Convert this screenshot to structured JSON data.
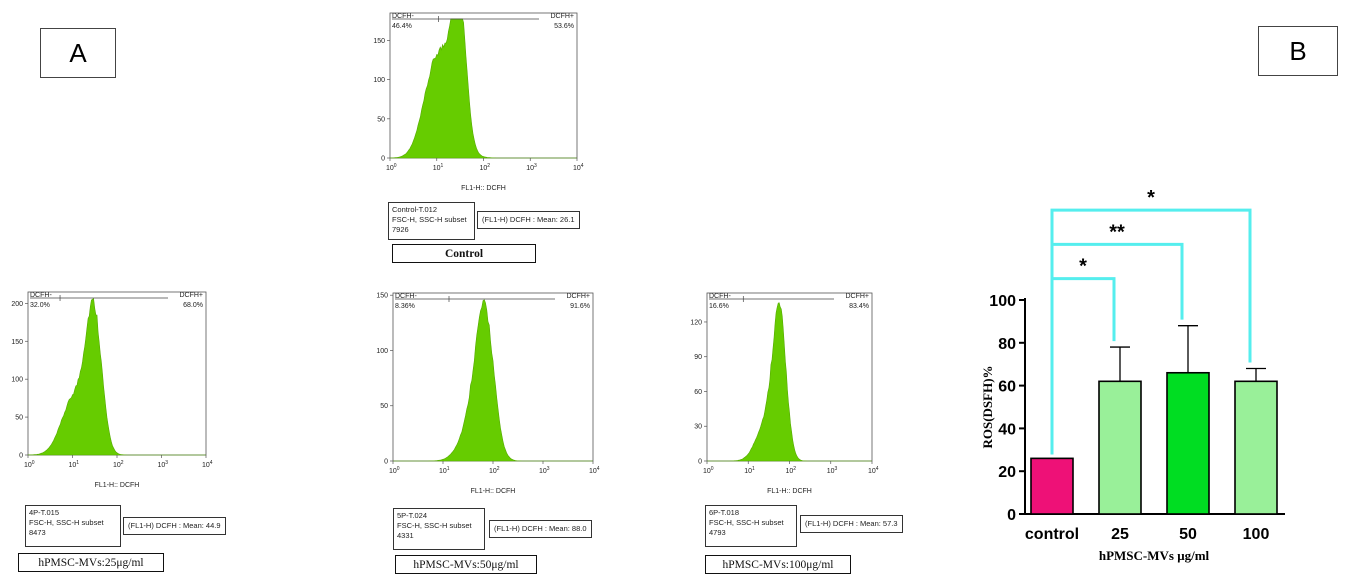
{
  "panel_a_label": "A",
  "panel_b_label": "B",
  "flow_plots": [
    {
      "gate_left": "DCFH-",
      "gate_right": "DCFH+",
      "pct_left": "46.4%",
      "pct_right": "53.6%",
      "xlabel": "FL1-H:: DCFH",
      "yticks": [
        "0",
        "50",
        "100",
        "150"
      ],
      "ymax": 185,
      "info_lines": [
        "Control-T.012",
        "FSC-H, SSC-H subset",
        "7926"
      ],
      "mean_text": "(FL1-H) DCFH : Mean: 26.1",
      "sample": "Control",
      "hist_color": "#66cc00"
    },
    {
      "gate_left": "DCFH-",
      "gate_right": "DCFH+",
      "pct_left": "32.0%",
      "pct_right": "68.0%",
      "xlabel": "FL1-H:: DCFH",
      "yticks": [
        "0",
        "50",
        "100",
        "150",
        "200"
      ],
      "ymax": 215,
      "info_lines": [
        "4P-T.015",
        "FSC-H, SSC-H subset",
        "8473"
      ],
      "mean_text": "(FL1-H) DCFH : Mean: 44.9",
      "sample": "hPMSC-MVs:25μg/ml",
      "hist_color": "#66cc00"
    },
    {
      "gate_left": "DCFH-",
      "gate_right": "DCFH+",
      "pct_left": "8.36%",
      "pct_right": "91.6%",
      "xlabel": "FL1-H:: DCFH",
      "yticks": [
        "0",
        "50",
        "100",
        "150"
      ],
      "ymax": 152,
      "info_lines": [
        "5P-T.024",
        "FSC-H, SSC-H subset",
        "4331"
      ],
      "mean_text": "(FL1-H) DCFH : Mean: 88.0",
      "sample": "hPMSC-MVs:50μg/ml",
      "hist_color": "#66cc00"
    },
    {
      "gate_left": "DCFH-",
      "gate_right": "DCFH+",
      "pct_left": "16.6%",
      "pct_right": "83.4%",
      "xlabel": "FL1-H:: DCFH",
      "yticks": [
        "0",
        "30",
        "60",
        "90",
        "120"
      ],
      "ymax": 145,
      "info_lines": [
        "6P-T.018",
        "FSC-H, SSC-H subset",
        "4793"
      ],
      "mean_text": "(FL1-H) DCFH : Mean: 57.3",
      "sample": "hPMSC-MVs:100μg/ml",
      "hist_color": "#66cc00"
    }
  ],
  "flow_xticks": [
    "10",
    "10",
    "10",
    "10",
    "10"
  ],
  "flow_xtick_exps": [
    "0",
    "1",
    "2",
    "3",
    "4"
  ],
  "chart_data": {
    "type": "bar",
    "categories": [
      "control",
      "25",
      "50",
      "100"
    ],
    "values": [
      26,
      62,
      66,
      62
    ],
    "errors": [
      0,
      16,
      22,
      6
    ],
    "colors": [
      "#ee1177",
      "#99f099",
      "#00dd22",
      "#99f099"
    ],
    "xlabel": "hPMSC-MVs μg/ml",
    "ylabel": "ROS(DSFH)%",
    "ylim": [
      0,
      100
    ],
    "yticks": [
      0,
      20,
      40,
      60,
      80,
      100
    ],
    "grid": false,
    "significance": [
      {
        "from": 0,
        "to": 1,
        "label": "*",
        "level": 110
      },
      {
        "from": 0,
        "to": 2,
        "label": "**",
        "level": 126
      },
      {
        "from": 0,
        "to": 3,
        "label": "*",
        "level": 142
      }
    ],
    "bracket_color": "#55eeee"
  }
}
